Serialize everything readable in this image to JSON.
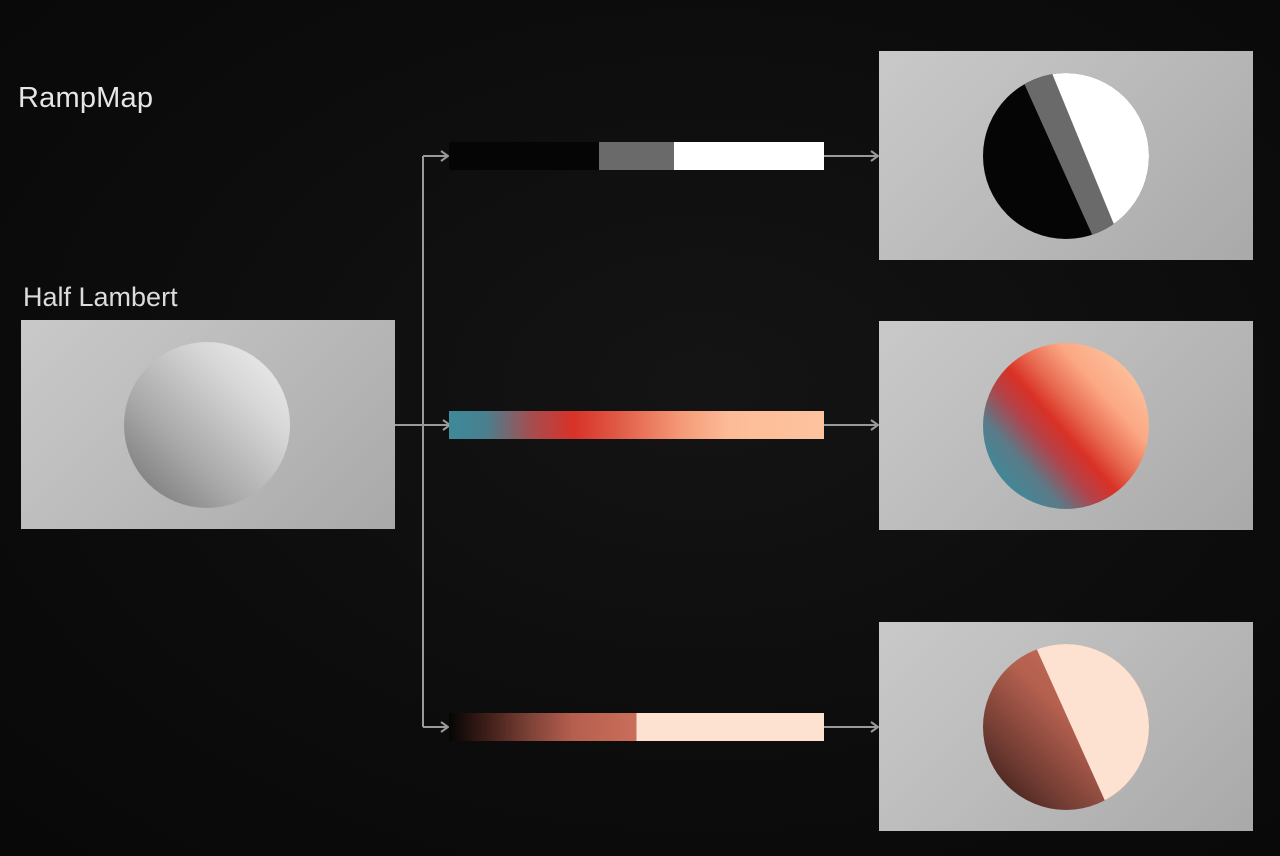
{
  "title": "RampMap",
  "source": {
    "label": "Half Lambert"
  },
  "ramps": [
    {
      "name": "three-step-gray-ramp"
    },
    {
      "name": "teal-red-peach-ramp"
    },
    {
      "name": "dark-to-peach-hard-ramp"
    }
  ]
}
